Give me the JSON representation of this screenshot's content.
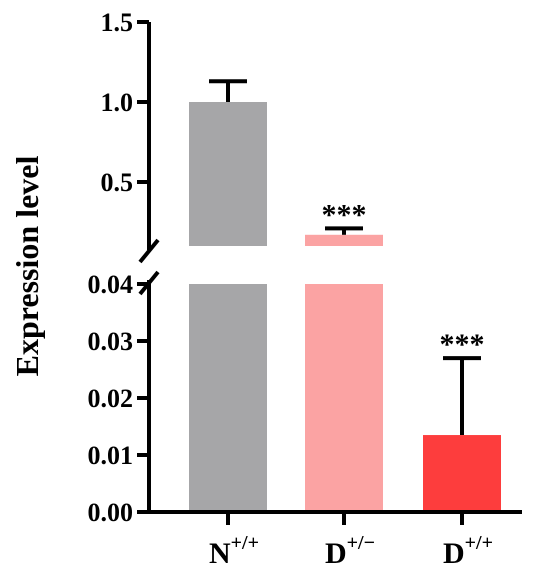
{
  "chart_data": {
    "type": "bar",
    "ylabel": "Expression level",
    "y_axis_break": true,
    "upper_segment": {
      "ylim": [
        0.1,
        1.5
      ],
      "ticks": [
        "0.5",
        "1.0",
        "1.5"
      ],
      "tick_values": [
        0.5,
        1.0,
        1.5
      ]
    },
    "lower_segment": {
      "ylim": [
        0,
        0.04
      ],
      "ticks": [
        "0.00",
        "0.01",
        "0.02",
        "0.03",
        "0.04"
      ],
      "tick_values": [
        0,
        0.01,
        0.02,
        0.03,
        0.04
      ]
    },
    "categories": [
      {
        "base": "N",
        "sup": "+/+"
      },
      {
        "base": "D",
        "sup": "+/−"
      },
      {
        "base": "D",
        "sup": "+/+"
      }
    ],
    "values": [
      1.0,
      0.17,
      0.0135
    ],
    "error_upper": [
      1.13,
      0.21,
      0.027
    ],
    "annotations": [
      "",
      "***",
      "***"
    ],
    "colors": [
      "#a6a6a8",
      "#fba3a3",
      "#fd3d3d"
    ],
    "grid": false
  }
}
